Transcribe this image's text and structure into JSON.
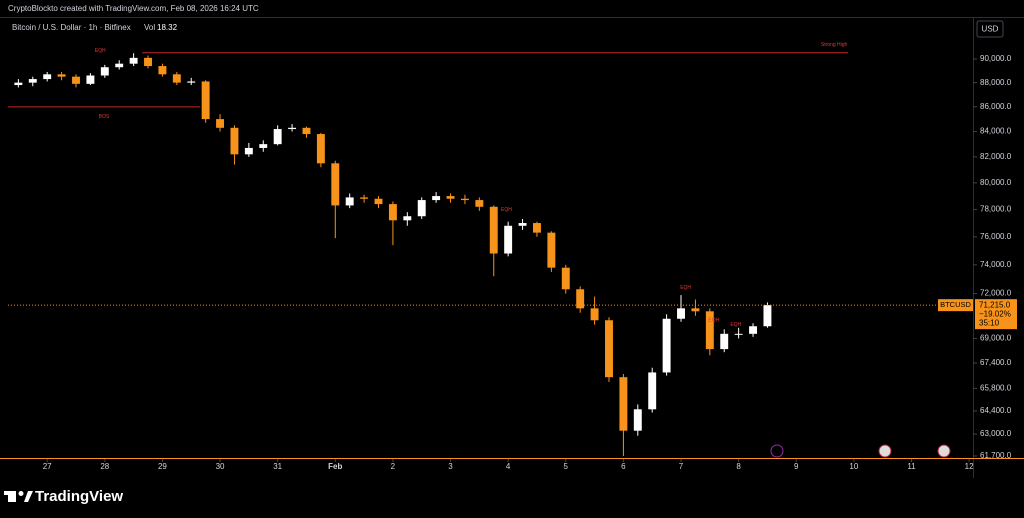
{
  "header": {
    "credit": "CryptoBlockto created with TradingView.com, Feb 08, 2026 16:24 UTC"
  },
  "footer": {
    "brand": "TradingView"
  },
  "chart_data": {
    "type": "candlestick",
    "title": "Bitcoin / U.S. Dollar · 1h · Bitfinex",
    "volume_label": "Vol",
    "volume_value": "18.32",
    "currency": "USD",
    "log_scale": true,
    "up_color": "#ffffff",
    "down_color": "#f7931a",
    "x": [
      26.5,
      26.75,
      27,
      27.25,
      27.5,
      27.75,
      28,
      28.25,
      28.5,
      28.75,
      29,
      29.25,
      29.5,
      29.75,
      30,
      30.25,
      30.5,
      30.75,
      31,
      31.25,
      31.5,
      31.75,
      32,
      32.25,
      32.5,
      32.75,
      33,
      33.25,
      33.5,
      33.75,
      34,
      34.25,
      34.5,
      34.75,
      35,
      35.25,
      35.5,
      35.75,
      36,
      36.25,
      36.5,
      36.75,
      37,
      37.25,
      37.5,
      37.75,
      38,
      38.25,
      38.5,
      38.75,
      39,
      39.25,
      39.5
    ],
    "open": [
      87800,
      88000,
      88300,
      88700,
      88500,
      87900,
      88600,
      89300,
      89600,
      90100,
      89400,
      88700,
      88000,
      88100,
      85000,
      84300,
      82200,
      82700,
      83000,
      84200,
      84300,
      83800,
      81500,
      78300,
      78900,
      78800,
      78400,
      77200,
      77500,
      78700,
      79000,
      78800,
      78700,
      78200,
      74800,
      76800,
      77000,
      76300,
      73800,
      72300,
      71000,
      70200,
      66500,
      63200,
      64500,
      66800,
      70300,
      71000,
      70800,
      68300,
      69300,
      69300,
      69800
    ],
    "high": [
      88300,
      88500,
      88900,
      88900,
      88700,
      88800,
      89500,
      89900,
      90500,
      90300,
      89600,
      88900,
      88400,
      88200,
      85400,
      84500,
      83100,
      83300,
      84500,
      84600,
      84400,
      83900,
      81700,
      79200,
      79100,
      79000,
      78600,
      77800,
      78900,
      79300,
      79200,
      79100,
      78900,
      78300,
      77100,
      77300,
      77100,
      76400,
      74000,
      72500,
      71800,
      70400,
      66700,
      64800,
      67100,
      70600,
      71900,
      71600,
      71000,
      69600,
      69700,
      70000,
      71400
    ],
    "low": [
      87600,
      87700,
      88100,
      88200,
      87600,
      87800,
      88400,
      89100,
      89400,
      89200,
      88500,
      87800,
      87800,
      84700,
      84000,
      81400,
      82000,
      82400,
      82900,
      84000,
      83500,
      81200,
      75900,
      78100,
      78500,
      78100,
      75400,
      76800,
      77300,
      78500,
      78500,
      78400,
      77900,
      73200,
      74600,
      76500,
      76000,
      73500,
      72000,
      70700,
      69900,
      66200,
      61700,
      62900,
      64300,
      66600,
      70100,
      70500,
      67900,
      68100,
      69000,
      69100,
      69700
    ],
    "close": [
      88000,
      88300,
      88700,
      88500,
      87900,
      88600,
      89300,
      89600,
      90100,
      89400,
      88700,
      88000,
      88100,
      85000,
      84300,
      82200,
      82700,
      83000,
      84200,
      84300,
      83800,
      81500,
      78300,
      78900,
      78800,
      78400,
      77200,
      77500,
      78700,
      79000,
      78800,
      78700,
      78200,
      74800,
      76800,
      77000,
      76300,
      73800,
      72300,
      71000,
      70200,
      66500,
      63200,
      64500,
      66800,
      70300,
      71000,
      70800,
      68300,
      69300,
      69300,
      69800,
      71215
    ],
    "xlim": [
      26.32,
      43.05
    ],
    "xticks": [
      {
        "value": 27,
        "label": "27"
      },
      {
        "value": 28,
        "label": "28"
      },
      {
        "value": 29,
        "label": "29"
      },
      {
        "value": 30,
        "label": "30"
      },
      {
        "value": 31,
        "label": "31"
      },
      {
        "value": 32,
        "label": "Feb"
      },
      {
        "value": 33,
        "label": "2"
      },
      {
        "value": 34,
        "label": "3"
      },
      {
        "value": 35,
        "label": "4"
      },
      {
        "value": 36,
        "label": "5"
      },
      {
        "value": 37,
        "label": "6"
      },
      {
        "value": 38,
        "label": "7"
      },
      {
        "value": 39,
        "label": "8"
      },
      {
        "value": 40,
        "label": "9"
      },
      {
        "value": 41,
        "label": "10"
      },
      {
        "value": 42,
        "label": "11"
      },
      {
        "value": 43,
        "label": "12"
      }
    ],
    "ylim": [
      61580,
      93580
    ],
    "yticks": [
      {
        "value": 90000,
        "label": "90,000.0"
      },
      {
        "value": 88000,
        "label": "88,000.0"
      },
      {
        "value": 86000,
        "label": "86,000.0"
      },
      {
        "value": 84000,
        "label": "84,000.0"
      },
      {
        "value": 82000,
        "label": "82,000.0"
      },
      {
        "value": 80000,
        "label": "80,000.0"
      },
      {
        "value": 78000,
        "label": "78,000.0"
      },
      {
        "value": 76000,
        "label": "76,000.0"
      },
      {
        "value": 74000,
        "label": "74,000.0"
      },
      {
        "value": 72000,
        "label": "72,000.0"
      },
      {
        "value": 69000,
        "label": "69,000.0"
      },
      {
        "value": 67400,
        "label": "67,400.0"
      },
      {
        "value": 65800,
        "label": "65,800.0"
      },
      {
        "value": 64400,
        "label": "64,400.0"
      },
      {
        "value": 63000,
        "label": "63,000.0"
      },
      {
        "value": 61700,
        "label": "61,700.0"
      }
    ],
    "levels": [
      {
        "label": "Strong High",
        "value": 90540,
        "x": [
          28.65,
          40.9
        ]
      },
      {
        "label": "BOS",
        "value": 86000,
        "x": [
          26.32,
          29.65
        ]
      }
    ],
    "markers": [
      {
        "label": "EQH",
        "x": 27.92,
        "value": 90700
      },
      {
        "label": "EQH",
        "x": 34.97,
        "value": 78000
      },
      {
        "label": "EQH",
        "x": 38.08,
        "value": 72400
      },
      {
        "label": "EQH",
        "x": 38.57,
        "value": 70200
      },
      {
        "label": "EQH",
        "x": 38.95,
        "value": 69900
      }
    ],
    "last_price": {
      "symbol": "BTCUSD",
      "value": 71215,
      "label": "71,215.0",
      "change": "−19.02%",
      "countdown": "35:10"
    }
  }
}
